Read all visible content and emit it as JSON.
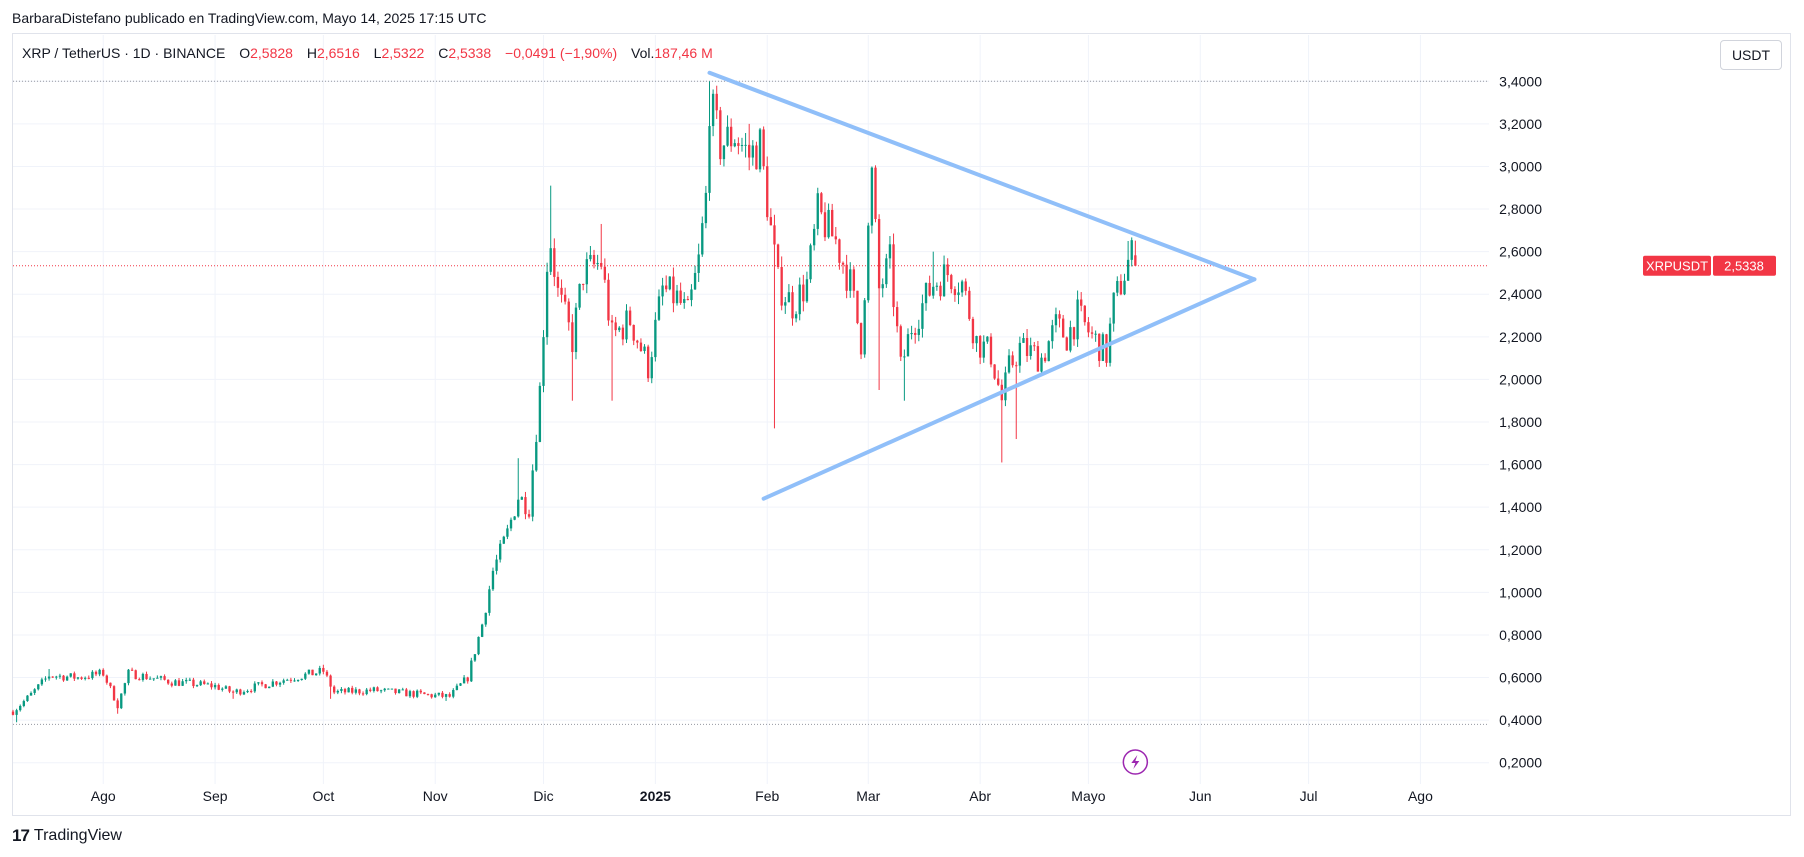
{
  "header": {
    "published_by": "BarbaraDistefano publicado en TradingView.com, Mayo 14, 2025 17:15 UTC"
  },
  "legend": {
    "symbol": "XRP / TetherUS · 1D · BINANCE",
    "open_label": "O",
    "open": "2,5828",
    "high_label": "H",
    "high": "2,6516",
    "low_label": "L",
    "low": "2,5322",
    "close_label": "C",
    "close": "2,5338",
    "change": "−0,0491 (−1,90%)",
    "vol_label": "Vol.",
    "vol": "187,46 M"
  },
  "currency_button": "USDT",
  "footer": {
    "logo_mark": "17",
    "brand": "TradingView"
  },
  "colors": {
    "up": "#089981",
    "down": "#f23645",
    "trendline": "#90bff9",
    "grid": "#f0f3fa",
    "price_line": "#f23645",
    "dotted": "#9598a1",
    "lightning": "#9c27b0"
  },
  "icons": {
    "lightning": "lightning-icon"
  },
  "chart_data": {
    "type": "candlestick",
    "interval": "1D",
    "currency": "USDT",
    "yaxis": {
      "range": [
        0.1,
        3.5
      ],
      "ticks": [
        "0,2000",
        "0,4000",
        "0,6000",
        "0,8000",
        "1,0000",
        "1,2000",
        "1,4000",
        "1,6000",
        "1,8000",
        "2,0000",
        "2,2000",
        "2,4000",
        "2,6000",
        "2,8000",
        "3,0000",
        "3,2000",
        "3,4000"
      ],
      "tick_values": [
        0.2,
        0.4,
        0.6,
        0.8,
        1.0,
        1.2,
        1.4,
        1.6,
        1.8,
        2.0,
        2.2,
        2.4,
        2.6,
        2.8,
        3.0,
        3.2,
        3.4
      ]
    },
    "xaxis": {
      "range": [
        "2024-07-07",
        "2025-08-20"
      ],
      "ticks": [
        {
          "date": "2024-08-01",
          "label": "Ago",
          "bold": false
        },
        {
          "date": "2024-09-01",
          "label": "Sep",
          "bold": false
        },
        {
          "date": "2024-10-01",
          "label": "Oct",
          "bold": false
        },
        {
          "date": "2024-11-01",
          "label": "Nov",
          "bold": false
        },
        {
          "date": "2024-12-01",
          "label": "Dic",
          "bold": false
        },
        {
          "date": "2025-01-01",
          "label": "2025",
          "bold": true
        },
        {
          "date": "2025-02-01",
          "label": "Feb",
          "bold": false
        },
        {
          "date": "2025-03-01",
          "label": "Mar",
          "bold": false
        },
        {
          "date": "2025-04-01",
          "label": "Abr",
          "bold": false
        },
        {
          "date": "2025-05-01",
          "label": "Mayo",
          "bold": false
        },
        {
          "date": "2025-06-01",
          "label": "Jun",
          "bold": false
        },
        {
          "date": "2025-07-01",
          "label": "Jul",
          "bold": false
        },
        {
          "date": "2025-08-01",
          "label": "Ago",
          "bold": false
        }
      ]
    },
    "last_price": {
      "label": "XRPUSDT",
      "value": 2.5338,
      "text": "2,5338"
    },
    "horizontal_lines": [
      3.4,
      0.38
    ],
    "trendlines": [
      {
        "name": "upper",
        "from": {
          "date": "2025-01-16",
          "price": 3.44
        },
        "to": {
          "date": "2025-06-16",
          "price": 2.47
        }
      },
      {
        "name": "lower",
        "from": {
          "date": "2025-01-31",
          "price": 1.44
        },
        "to": {
          "date": "2025-06-16",
          "price": 2.47
        }
      }
    ],
    "close_path": [
      {
        "date": "2024-07-07",
        "price": 0.44
      },
      {
        "date": "2024-07-12",
        "price": 0.52
      },
      {
        "date": "2024-07-17",
        "price": 0.61
      },
      {
        "date": "2024-07-25",
        "price": 0.6
      },
      {
        "date": "2024-08-01",
        "price": 0.62
      },
      {
        "date": "2024-08-05",
        "price": 0.47
      },
      {
        "date": "2024-08-08",
        "price": 0.62
      },
      {
        "date": "2024-08-20",
        "price": 0.58
      },
      {
        "date": "2024-09-01",
        "price": 0.56
      },
      {
        "date": "2024-09-06",
        "price": 0.53
      },
      {
        "date": "2024-09-20",
        "price": 0.59
      },
      {
        "date": "2024-10-01",
        "price": 0.63
      },
      {
        "date": "2024-10-04",
        "price": 0.53
      },
      {
        "date": "2024-10-15",
        "price": 0.54
      },
      {
        "date": "2024-10-28",
        "price": 0.52
      },
      {
        "date": "2024-11-05",
        "price": 0.51
      },
      {
        "date": "2024-11-10",
        "price": 0.6
      },
      {
        "date": "2024-11-14",
        "price": 0.85
      },
      {
        "date": "2024-11-17",
        "price": 1.1
      },
      {
        "date": "2024-11-21",
        "price": 1.28
      },
      {
        "date": "2024-11-24",
        "price": 1.45
      },
      {
        "date": "2024-11-27",
        "price": 1.4
      },
      {
        "date": "2024-11-30",
        "price": 1.95
      },
      {
        "date": "2024-12-02",
        "price": 2.55
      },
      {
        "date": "2024-12-03",
        "price": 2.65
      },
      {
        "date": "2024-12-05",
        "price": 2.4
      },
      {
        "date": "2024-12-09",
        "price": 2.18
      },
      {
        "date": "2024-12-12",
        "price": 2.5
      },
      {
        "date": "2024-12-17",
        "price": 2.55
      },
      {
        "date": "2024-12-20",
        "price": 2.2
      },
      {
        "date": "2024-12-25",
        "price": 2.28
      },
      {
        "date": "2024-12-30",
        "price": 2.06
      },
      {
        "date": "2025-01-03",
        "price": 2.42
      },
      {
        "date": "2025-01-07",
        "price": 2.38
      },
      {
        "date": "2025-01-10",
        "price": 2.3
      },
      {
        "date": "2025-01-13",
        "price": 2.55
      },
      {
        "date": "2025-01-15",
        "price": 2.85
      },
      {
        "date": "2025-01-16",
        "price": 3.3
      },
      {
        "date": "2025-01-19",
        "price": 3.1
      },
      {
        "date": "2025-01-23",
        "price": 3.15
      },
      {
        "date": "2025-01-27",
        "price": 3.05
      },
      {
        "date": "2025-01-30",
        "price": 3.1
      },
      {
        "date": "2025-02-02",
        "price": 2.7
      },
      {
        "date": "2025-02-04",
        "price": 2.45
      },
      {
        "date": "2025-02-08",
        "price": 2.35
      },
      {
        "date": "2025-02-12",
        "price": 2.45
      },
      {
        "date": "2025-02-15",
        "price": 2.78
      },
      {
        "date": "2025-02-20",
        "price": 2.65
      },
      {
        "date": "2025-02-24",
        "price": 2.45
      },
      {
        "date": "2025-02-27",
        "price": 2.18
      },
      {
        "date": "2025-03-02",
        "price": 2.95
      },
      {
        "date": "2025-03-04",
        "price": 2.42
      },
      {
        "date": "2025-03-07",
        "price": 2.55
      },
      {
        "date": "2025-03-10",
        "price": 2.05
      },
      {
        "date": "2025-03-13",
        "price": 2.25
      },
      {
        "date": "2025-03-19",
        "price": 2.45
      },
      {
        "date": "2025-03-23",
        "price": 2.5
      },
      {
        "date": "2025-03-27",
        "price": 2.45
      },
      {
        "date": "2025-03-31",
        "price": 2.18
      },
      {
        "date": "2025-04-04",
        "price": 2.12
      },
      {
        "date": "2025-04-07",
        "price": 1.9
      },
      {
        "date": "2025-04-09",
        "price": 2.05
      },
      {
        "date": "2025-04-12",
        "price": 2.15
      },
      {
        "date": "2025-04-18",
        "price": 2.1
      },
      {
        "date": "2025-04-22",
        "price": 2.25
      },
      {
        "date": "2025-04-25",
        "price": 2.2
      },
      {
        "date": "2025-04-28",
        "price": 2.3
      },
      {
        "date": "2025-05-02",
        "price": 2.2
      },
      {
        "date": "2025-05-06",
        "price": 2.12
      },
      {
        "date": "2025-05-08",
        "price": 2.35
      },
      {
        "date": "2025-05-10",
        "price": 2.45
      },
      {
        "date": "2025-05-12",
        "price": 2.55
      },
      {
        "date": "2025-05-13",
        "price": 2.58
      },
      {
        "date": "2025-05-14",
        "price": 2.5338
      }
    ],
    "lows": [
      {
        "date": "2024-07-08",
        "price": 0.39
      },
      {
        "date": "2024-08-05",
        "price": 0.43
      },
      {
        "date": "2024-09-06",
        "price": 0.5
      },
      {
        "date": "2024-10-03",
        "price": 0.5
      },
      {
        "date": "2024-11-04",
        "price": 0.49
      },
      {
        "date": "2024-12-09",
        "price": 1.9
      },
      {
        "date": "2024-12-20",
        "price": 1.9
      },
      {
        "date": "2025-02-03",
        "price": 1.77
      },
      {
        "date": "2025-03-04",
        "price": 1.95
      },
      {
        "date": "2025-03-11",
        "price": 1.9
      },
      {
        "date": "2025-04-07",
        "price": 1.61
      },
      {
        "date": "2025-04-11",
        "price": 1.72
      }
    ],
    "highs": [
      {
        "date": "2024-07-17",
        "price": 0.64
      },
      {
        "date": "2024-08-08",
        "price": 0.64
      },
      {
        "date": "2024-10-01",
        "price": 0.66
      },
      {
        "date": "2024-11-24",
        "price": 1.63
      },
      {
        "date": "2024-12-03",
        "price": 2.91
      },
      {
        "date": "2024-12-17",
        "price": 2.73
      },
      {
        "date": "2025-01-16",
        "price": 3.4
      },
      {
        "date": "2025-01-27",
        "price": 3.2
      },
      {
        "date": "2025-03-02",
        "price": 3.0
      },
      {
        "date": "2025-03-19",
        "price": 2.6
      },
      {
        "date": "2025-05-12",
        "price": 2.65
      }
    ]
  }
}
